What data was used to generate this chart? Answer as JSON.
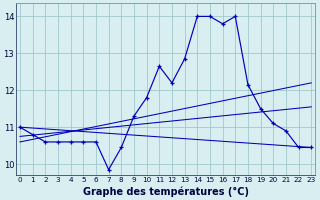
{
  "xlabel": "Graphe des températures (°C)",
  "background_color": "#d8eef0",
  "line_color": "#0000bb",
  "grid_color": "#a0c8cc",
  "hours": [
    0,
    1,
    2,
    3,
    4,
    5,
    6,
    7,
    8,
    9,
    10,
    11,
    12,
    13,
    14,
    15,
    16,
    17,
    18,
    19,
    20,
    21,
    22,
    23
  ],
  "temp_main": [
    11.0,
    10.8,
    10.6,
    10.6,
    10.6,
    10.6,
    10.6,
    9.85,
    10.45,
    11.3,
    11.8,
    12.65,
    12.2,
    12.85,
    14.0,
    14.0,
    13.8,
    14.0,
    12.15,
    11.5,
    11.1,
    10.9,
    10.45,
    10.45
  ],
  "trend1": [
    11.0,
    10.45
  ],
  "trend2": [
    10.75,
    11.55
  ],
  "trend3": [
    10.6,
    12.2
  ],
  "ylim": [
    9.7,
    14.35
  ],
  "yticks": [
    10,
    11,
    12,
    13,
    14
  ],
  "xticks": [
    0,
    1,
    2,
    3,
    4,
    5,
    6,
    7,
    8,
    9,
    10,
    11,
    12,
    13,
    14,
    15,
    16,
    17,
    18,
    19,
    20,
    21,
    22,
    23
  ],
  "xlim": [
    -0.3,
    23.3
  ]
}
